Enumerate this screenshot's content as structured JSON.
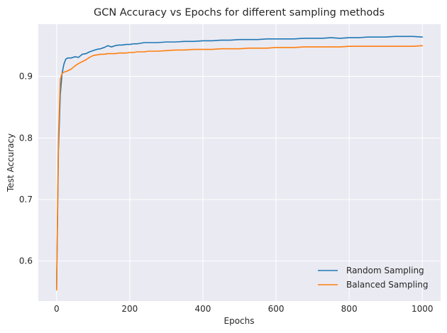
{
  "chart_data": {
    "type": "line",
    "title": "GCN Accuracy vs Epochs for different sampling methods",
    "xlabel": "Epochs",
    "ylabel": "Test Accuracy",
    "xlim": [
      -50,
      1050
    ],
    "ylim": [
      0.535,
      0.985
    ],
    "xticks": [
      0,
      200,
      400,
      600,
      800,
      1000
    ],
    "xtick_labels": [
      "0",
      "200",
      "400",
      "600",
      "800",
      "1000"
    ],
    "yticks": [
      0.6,
      0.7,
      0.8,
      0.9
    ],
    "ytick_labels": [
      "0.6",
      "0.7",
      "0.8",
      "0.9"
    ],
    "grid": true,
    "legend_position": "lower-right",
    "background": "#eaeaf2",
    "series": [
      {
        "name": "Random Sampling",
        "color": "#1f77b4",
        "x": [
          0,
          5,
          10,
          15,
          20,
          25,
          30,
          40,
          50,
          60,
          70,
          80,
          90,
          100,
          110,
          120,
          130,
          140,
          150,
          160,
          170,
          180,
          190,
          200,
          210,
          220,
          230,
          240,
          250,
          275,
          300,
          325,
          350,
          375,
          400,
          425,
          450,
          475,
          500,
          525,
          550,
          575,
          600,
          625,
          650,
          675,
          700,
          725,
          750,
          775,
          800,
          825,
          850,
          875,
          900,
          925,
          950,
          975,
          1000
        ],
        "y": [
          0.555,
          0.78,
          0.87,
          0.905,
          0.92,
          0.928,
          0.93,
          0.93,
          0.932,
          0.931,
          0.936,
          0.937,
          0.94,
          0.942,
          0.944,
          0.945,
          0.947,
          0.95,
          0.948,
          0.95,
          0.951,
          0.951,
          0.952,
          0.952,
          0.953,
          0.953,
          0.954,
          0.955,
          0.955,
          0.955,
          0.956,
          0.956,
          0.957,
          0.957,
          0.958,
          0.958,
          0.959,
          0.959,
          0.96,
          0.96,
          0.96,
          0.961,
          0.961,
          0.961,
          0.961,
          0.962,
          0.962,
          0.962,
          0.963,
          0.962,
          0.963,
          0.963,
          0.964,
          0.964,
          0.964,
          0.965,
          0.965,
          0.965,
          0.964
        ]
      },
      {
        "name": "Balanced Sampling",
        "color": "#ff7f0e",
        "x": [
          0,
          5,
          10,
          15,
          20,
          25,
          30,
          40,
          50,
          60,
          70,
          80,
          90,
          100,
          110,
          120,
          130,
          140,
          150,
          160,
          170,
          180,
          190,
          200,
          210,
          220,
          230,
          240,
          250,
          275,
          300,
          325,
          350,
          375,
          400,
          425,
          450,
          475,
          500,
          525,
          550,
          575,
          600,
          625,
          650,
          675,
          700,
          725,
          750,
          775,
          800,
          825,
          850,
          875,
          900,
          925,
          950,
          975,
          1000
        ],
        "y": [
          0.553,
          0.8,
          0.895,
          0.905,
          0.907,
          0.908,
          0.909,
          0.912,
          0.917,
          0.921,
          0.924,
          0.927,
          0.931,
          0.934,
          0.935,
          0.936,
          0.936,
          0.937,
          0.937,
          0.937,
          0.938,
          0.938,
          0.938,
          0.939,
          0.939,
          0.94,
          0.94,
          0.94,
          0.941,
          0.941,
          0.942,
          0.943,
          0.943,
          0.944,
          0.944,
          0.944,
          0.945,
          0.945,
          0.945,
          0.946,
          0.946,
          0.946,
          0.947,
          0.947,
          0.947,
          0.948,
          0.948,
          0.948,
          0.948,
          0.948,
          0.949,
          0.949,
          0.949,
          0.949,
          0.949,
          0.949,
          0.949,
          0.949,
          0.95
        ]
      }
    ]
  }
}
